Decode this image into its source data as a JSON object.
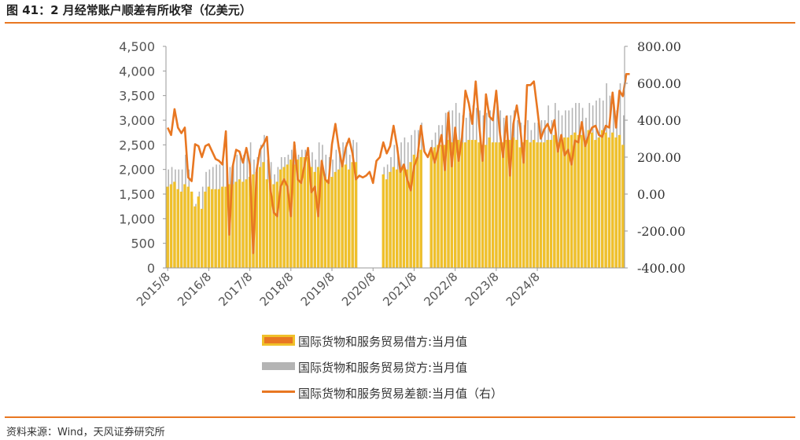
{
  "header": {
    "title": "图 41：2 月经常账户顺差有所收窄（亿美元）"
  },
  "footer": {
    "source": "资料来源：Wind，天风证券研究所"
  },
  "colors": {
    "accent": "#E87722",
    "debit_bar": "#F0C02A",
    "credit_bar": "#B4B4B4",
    "balance_line": "#E87722"
  },
  "chart_data": {
    "type": "bar",
    "title": "",
    "xlabel": "",
    "ylabel": "",
    "left_axis": {
      "ylim": [
        0,
        4500
      ],
      "ticks": [
        "0",
        "500",
        "1,000",
        "1,500",
        "2,000",
        "2,500",
        "3,000",
        "3,500",
        "4,000",
        "4,500"
      ]
    },
    "right_axis": {
      "ylim": [
        -400,
        800
      ],
      "ticks": [
        "-400.00",
        "-200.00",
        "0.00",
        "200.00",
        "400.00",
        "600.00",
        "800.00"
      ]
    },
    "x_tick_labels": [
      "2015/8",
      "2016/8",
      "2017/8",
      "2018/8",
      "2019/8",
      "2020/8",
      "2021/8",
      "2022/8",
      "2023/8",
      "2024/8"
    ],
    "x_start": "2015/8",
    "x_end": "2025/2",
    "grid": false,
    "legend_position": "bottom",
    "legend": [
      {
        "label": "国际货物和服务贸易借方:当月值",
        "kind": "bar"
      },
      {
        "label": "国际货物和服务贸易贷方:当月值",
        "kind": "bar"
      },
      {
        "label": "国际货物和服务贸易差额:当月值（右）",
        "kind": "line"
      }
    ],
    "series": [
      {
        "name": "国际货物和服务贸易借方:当月值",
        "axis": "left",
        "type": "bar",
        "values": [
          1650,
          1700,
          1750,
          1600,
          1550,
          1700,
          1650,
          1550,
          1250,
          1450,
          1200,
          1550,
          1650,
          1600,
          1600,
          1600,
          1650,
          1650,
          1700,
          1700,
          1750,
          1800,
          1750,
          1800,
          1850,
          1900,
          1950,
          2050,
          2150,
          1800,
          1800,
          1700,
          1750,
          2000,
          2050,
          2100,
          2200,
          2100,
          2200,
          2250,
          2250,
          2250,
          2050,
          1950,
          2050,
          2050,
          1850,
          1800,
          1850,
          1950,
          2000,
          2100,
          2100,
          2000,
          2150,
          2150,
          null,
          null,
          null,
          null,
          null,
          null,
          null,
          1900,
          1800,
          1950,
          2050,
          2000,
          2050,
          2100,
          2000,
          2150,
          2300,
          2250,
          2400,
          null,
          null,
          2400,
          2450,
          2500,
          2500,
          2500,
          2600,
          2550,
          2650,
          2600,
          2550,
          2550,
          2600,
          2600,
          2600,
          2550,
          2500,
          2500,
          2650,
          2550,
          2550,
          2550,
          2550,
          2600,
          2600,
          2650,
          2600,
          2450,
          2550,
          2600,
          2550,
          2600,
          2550,
          2550,
          2550,
          2600,
          2600,
          2700,
          2550,
          2650,
          2650,
          2650,
          2700,
          2750,
          2700,
          2700,
          2600,
          2800,
          2750,
          2600,
          2650,
          2800,
          2750,
          2650,
          2750,
          2650,
          2700,
          2500
        ]
      },
      {
        "name": "国际货物和服务贸易贷方:当月值",
        "axis": "left",
        "type": "bar",
        "values": [
          2000,
          2050,
          2000,
          2000,
          2000,
          2300,
          2000,
          1400,
          1300,
          1550,
          1650,
          1950,
          2000,
          2050,
          2100,
          2100,
          2150,
          2100,
          2050,
          2100,
          2300,
          2300,
          2300,
          2300,
          2550,
          2200,
          2250,
          2500,
          2700,
          2200,
          2150,
          1900,
          2050,
          2250,
          2250,
          2300,
          2400,
          2500,
          2300,
          2400,
          2400,
          2400,
          2350,
          2200,
          2550,
          2500,
          2300,
          2250,
          2200,
          2400,
          2450,
          2550,
          2550,
          2300,
          2600,
          2550,
          null,
          null,
          null,
          null,
          null,
          null,
          null,
          2050,
          2100,
          2250,
          2500,
          2450,
          2550,
          2650,
          2550,
          2700,
          2800,
          2800,
          2950,
          null,
          null,
          2600,
          2750,
          2900,
          2900,
          3150,
          3200,
          3200,
          3350,
          3150,
          3100,
          3050,
          3150,
          3300,
          3250,
          3200,
          3100,
          3150,
          3200,
          3200,
          3350,
          3200,
          3050,
          3100,
          3100,
          3200,
          3000,
          2950,
          2900,
          3000,
          2800,
          2950,
          2950,
          3000,
          3000,
          3300,
          3000,
          3350,
          3200,
          3100,
          3200,
          3200,
          3250,
          3350,
          3350,
          3250,
          3050,
          3350,
          3300,
          3400,
          3450,
          3400,
          3750,
          3500,
          3300,
          3200,
          3750,
          3100
        ]
      },
      {
        "name": "国际货物和服务贸易差额:当月值（右）",
        "axis": "right",
        "type": "line",
        "values": [
          360,
          320,
          460,
          360,
          330,
          360,
          90,
          70,
          270,
          260,
          200,
          260,
          270,
          230,
          190,
          180,
          160,
          340,
          -220,
          150,
          240,
          230,
          170,
          250,
          160,
          -320,
          130,
          240,
          270,
          310,
          30,
          -100,
          -120,
          40,
          80,
          40,
          -120,
          280,
          80,
          60,
          160,
          250,
          10,
          40,
          -120,
          180,
          80,
          60,
          270,
          380,
          250,
          150,
          250,
          300,
          220,
          80,
          100,
          90,
          100,
          120,
          60,
          180,
          200,
          280,
          220,
          260,
          370,
          260,
          120,
          160,
          80,
          20,
          150,
          200,
          370,
          230,
          200,
          250,
          170,
          240,
          320,
          130,
          440,
          150,
          360,
          180,
          310,
          560,
          490,
          380,
          610,
          380,
          180,
          540,
          420,
          400,
          560,
          340,
          200,
          420,
          100,
          380,
          480,
          360,
          170,
          590,
          590,
          610,
          460,
          300,
          350,
          380,
          330,
          400,
          230,
          320,
          210,
          240,
          160,
          290,
          280,
          390,
          260,
          320,
          360,
          370,
          320,
          310,
          370,
          360,
          550,
          360,
          560,
          530,
          650,
          650
        ]
      }
    ]
  }
}
